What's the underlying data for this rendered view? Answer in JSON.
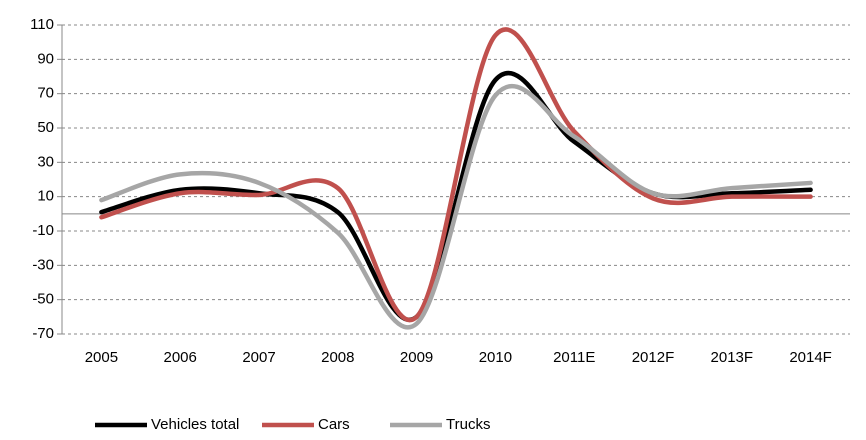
{
  "chart_data": {
    "type": "line",
    "categories": [
      "2005",
      "2006",
      "2007",
      "2008",
      "2009",
      "2010",
      "2011E",
      "2012F",
      "2013F",
      "2014F"
    ],
    "series": [
      {
        "name": "Vehicles total",
        "color": "#000000",
        "values": [
          1,
          14,
          12,
          1,
          -60,
          78,
          42,
          12,
          12,
          14
        ]
      },
      {
        "name": "Cars",
        "color": "#c0504d",
        "values": [
          -2,
          12,
          11,
          15,
          -60,
          104,
          48,
          9,
          10,
          10
        ]
      },
      {
        "name": "Trucks",
        "color": "#a6a6a6",
        "values": [
          8,
          23,
          18,
          -11,
          -64,
          69,
          45,
          12,
          15,
          18
        ]
      }
    ],
    "ylim": [
      -70,
      110
    ],
    "yticks": [
      -70,
      -50,
      -30,
      -10,
      10,
      30,
      50,
      70,
      90,
      110
    ],
    "grid": true,
    "legend": "bottom"
  }
}
